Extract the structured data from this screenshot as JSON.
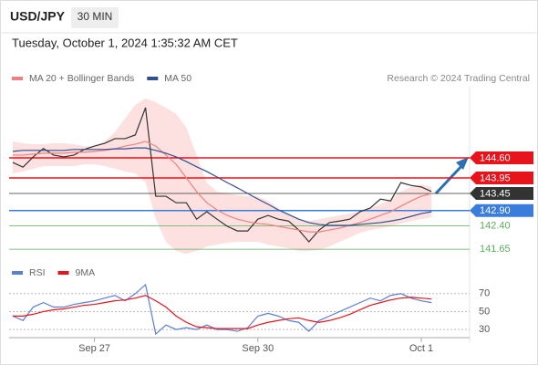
{
  "header": {
    "symbol": "USD/JPY",
    "interval": "30 MIN",
    "datetime": "Tuesday, October 1, 2024 1:35:32 AM CET"
  },
  "chart_data": [
    {
      "type": "line",
      "note": "Research © 2024 Trading Central",
      "ylim": [
        141.3,
        146.75
      ],
      "levels": [
        {
          "value": 144.6,
          "label": "144.60",
          "color": "#e8141b",
          "style": "box"
        },
        {
          "value": 143.95,
          "label": "143.95",
          "color": "#e8141b",
          "style": "box"
        },
        {
          "value": 143.45,
          "label": "143.45",
          "color": "#333333",
          "style": "box"
        },
        {
          "value": 142.9,
          "label": "142.90",
          "color": "#3b7ddd",
          "style": "box"
        },
        {
          "value": 142.4,
          "label": "142.40",
          "color": "#5cae5c",
          "style": "text"
        },
        {
          "value": 141.65,
          "label": "141.65",
          "color": "#5cae5c",
          "style": "text"
        }
      ],
      "series": [
        {
          "color": "#333333",
          "values": [
            144.45,
            144.3,
            144.63,
            144.9,
            144.69,
            144.63,
            144.69,
            144.87,
            144.98,
            145.07,
            145.22,
            145.22,
            145.34,
            146.22,
            143.36,
            143.36,
            143.15,
            143.15,
            142.62,
            142.86,
            142.62,
            142.39,
            142.24,
            142.24,
            142.62,
            142.74,
            142.62,
            142.56,
            142.27,
            141.89,
            142.27,
            142.51,
            142.56,
            142.62,
            142.86,
            142.98,
            143.27,
            143.21,
            143.8,
            143.71,
            143.66,
            143.51
          ]
        },
        {
          "name": "MA 20 + Bollinger Bands",
          "color": "#f08080",
          "band_color": "#fde0e0",
          "values": [
            144.69,
            144.69,
            144.72,
            144.75,
            144.75,
            144.75,
            144.78,
            144.78,
            144.81,
            144.84,
            144.89,
            144.98,
            145.04,
            145.13,
            144.98,
            144.69,
            144.39,
            143.95,
            143.51,
            143.15,
            142.92,
            142.74,
            142.62,
            142.54,
            142.48,
            142.45,
            142.39,
            142.33,
            142.27,
            142.21,
            142.21,
            142.27,
            142.33,
            142.42,
            142.51,
            142.62,
            142.74,
            142.86,
            143.04,
            143.21,
            143.36,
            143.45
          ],
          "upper": [
            145.13,
            145.07,
            145.04,
            145.04,
            145.07,
            145.07,
            145.04,
            144.98,
            144.98,
            145.13,
            145.43,
            145.87,
            146.31,
            146.52,
            146.4,
            146.22,
            146.02,
            145.57,
            144.69,
            143.8,
            143.51,
            143.45,
            143.39,
            143.36,
            143.36,
            143.21,
            142.98,
            142.77,
            142.62,
            142.56,
            142.62,
            142.68,
            142.74,
            142.8,
            142.86,
            142.98,
            143.1,
            143.27,
            143.51,
            143.66,
            143.74,
            143.66
          ],
          "lower": [
            144.1,
            144.16,
            144.25,
            144.33,
            144.33,
            144.33,
            144.33,
            144.39,
            144.39,
            144.33,
            144.25,
            144.16,
            144.1,
            143.8,
            142.62,
            141.89,
            141.59,
            141.5,
            141.59,
            141.74,
            141.8,
            141.86,
            141.89,
            141.89,
            141.89,
            141.8,
            141.74,
            141.68,
            141.59,
            141.59,
            141.62,
            141.74,
            141.89,
            142.03,
            142.18,
            142.27,
            142.33,
            142.39,
            142.48,
            142.56,
            142.62,
            142.68
          ]
        },
        {
          "name": "MA 50",
          "color": "#2f4f8f",
          "values": [
            144.81,
            144.84,
            144.84,
            144.84,
            144.84,
            144.84,
            144.87,
            144.87,
            144.87,
            144.87,
            144.89,
            144.89,
            144.92,
            144.92,
            144.84,
            144.75,
            144.63,
            144.48,
            144.31,
            144.16,
            143.98,
            143.8,
            143.63,
            143.45,
            143.27,
            143.1,
            142.92,
            142.77,
            142.62,
            142.51,
            142.45,
            142.42,
            142.42,
            142.42,
            142.45,
            142.48,
            142.51,
            142.56,
            142.62,
            142.71,
            142.8,
            142.86
          ]
        }
      ]
    },
    {
      "type": "line",
      "categories": [
        null,
        null,
        null,
        null,
        null,
        null,
        null,
        null,
        "Sep 27",
        null,
        null,
        null,
        null,
        null,
        null,
        null,
        null,
        null,
        null,
        null,
        null,
        null,
        null,
        null,
        "Sep 30",
        null,
        null,
        null,
        null,
        null,
        null,
        null,
        null,
        null,
        null,
        null,
        null,
        null,
        null,
        null,
        "Oct 1",
        null
      ],
      "ylim": [
        24,
        82
      ],
      "yticks": [
        70,
        50,
        30
      ],
      "series": [
        {
          "name": "RSI",
          "color": "#5b7fd6",
          "values": [
            45,
            40,
            55,
            60,
            55,
            55,
            58,
            60,
            62,
            65,
            68,
            62,
            70,
            80,
            25,
            35,
            30,
            32,
            30,
            35,
            30,
            30,
            28,
            32,
            45,
            48,
            45,
            40,
            38,
            28,
            40,
            45,
            50,
            55,
            60,
            65,
            62,
            68,
            70,
            65,
            62,
            60
          ]
        },
        {
          "name": "9MA",
          "color": "#e8141b",
          "values": [
            45,
            45,
            47,
            50,
            52,
            53,
            55,
            57,
            58,
            60,
            62,
            63,
            65,
            68,
            62,
            55,
            45,
            38,
            33,
            32,
            31,
            31,
            31,
            31,
            35,
            38,
            40,
            42,
            43,
            40,
            38,
            40,
            43,
            47,
            52,
            57,
            60,
            63,
            65,
            66,
            65,
            64
          ]
        }
      ]
    }
  ]
}
